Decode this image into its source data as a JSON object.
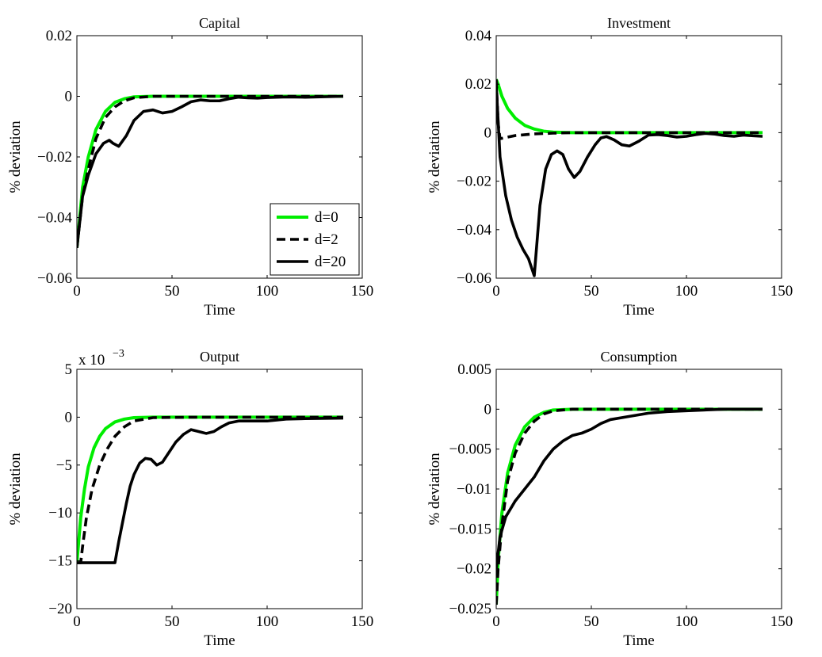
{
  "chart_data": [
    {
      "type": "line",
      "title": "Capital",
      "xlabel": "Time",
      "ylabel": "% deviation",
      "xlim": [
        0,
        150
      ],
      "ylim": [
        -0.06,
        0.02
      ],
      "xticks": [
        0,
        50,
        100,
        150
      ],
      "yticks": [
        -0.06,
        -0.04,
        -0.02,
        0,
        0.02
      ],
      "xtick_labels": [
        "0",
        "50",
        "100",
        "150"
      ],
      "ytick_labels": [
        "−0.06",
        "−0.04",
        "−0.02",
        "0",
        "0.02"
      ],
      "exponent_label": "",
      "grid": false,
      "legend": {
        "placement": "bottom-right",
        "entries": [
          "d=0",
          "d=2",
          "d=20"
        ]
      },
      "series": [
        {
          "name": "d=0",
          "color": "#00ee00",
          "dash": "solid",
          "x": [
            0,
            3,
            6,
            10,
            15,
            20,
            25,
            30,
            40,
            60,
            140
          ],
          "y": [
            -0.05,
            -0.03,
            -0.02,
            -0.011,
            -0.005,
            -0.002,
            -0.0008,
            -0.0002,
            0,
            0,
            0
          ]
        },
        {
          "name": "d=2",
          "color": "#000000",
          "dash": "dashed",
          "x": [
            0,
            3,
            6,
            10,
            15,
            20,
            25,
            30,
            40,
            60,
            140
          ],
          "y": [
            -0.05,
            -0.033,
            -0.024,
            -0.014,
            -0.007,
            -0.0035,
            -0.0015,
            -0.0005,
            0,
            0,
            0
          ]
        },
        {
          "name": "d=20",
          "color": "#000000",
          "dash": "solid",
          "x": [
            0,
            3,
            6,
            10,
            14,
            17,
            19,
            22,
            26,
            30,
            35,
            40,
            45,
            50,
            55,
            60,
            65,
            70,
            75,
            80,
            85,
            90,
            95,
            100,
            110,
            120,
            140
          ],
          "y": [
            -0.05,
            -0.033,
            -0.026,
            -0.019,
            -0.0155,
            -0.0145,
            -0.0155,
            -0.0165,
            -0.013,
            -0.008,
            -0.005,
            -0.0045,
            -0.0055,
            -0.005,
            -0.0035,
            -0.0018,
            -0.0012,
            -0.0015,
            -0.0015,
            -0.0008,
            -0.0003,
            -0.0005,
            -0.0006,
            -0.0004,
            -0.0002,
            -0.0003,
            0
          ]
        }
      ]
    },
    {
      "type": "line",
      "title": "Investment",
      "xlabel": "Time",
      "ylabel": "% deviation",
      "xlim": [
        0,
        150
      ],
      "ylim": [
        -0.06,
        0.04
      ],
      "xticks": [
        0,
        50,
        100,
        150
      ],
      "yticks": [
        -0.06,
        -0.04,
        -0.02,
        0,
        0.02,
        0.04
      ],
      "xtick_labels": [
        "0",
        "50",
        "100",
        "150"
      ],
      "ytick_labels": [
        "−0.06",
        "−0.04",
        "−0.02",
        "0",
        "0.02",
        "0.04"
      ],
      "exponent_label": "",
      "grid": false,
      "series": [
        {
          "name": "d=0",
          "color": "#00ee00",
          "dash": "solid",
          "x": [
            0,
            1,
            3,
            6,
            10,
            15,
            20,
            25,
            30,
            40,
            140
          ],
          "y": [
            0.022,
            0.02,
            0.015,
            0.01,
            0.006,
            0.003,
            0.0015,
            0.0006,
            0.0002,
            0,
            0
          ]
        },
        {
          "name": "d=2",
          "color": "#000000",
          "dash": "dashed",
          "x": [
            0,
            1,
            2,
            5,
            10,
            20,
            30,
            40,
            60,
            140
          ],
          "y": [
            0.022,
            0.004,
            -0.0025,
            -0.002,
            -0.0012,
            -0.0005,
            -0.0002,
            0,
            0,
            0
          ]
        },
        {
          "name": "d=20",
          "color": "#000000",
          "dash": "solid",
          "x": [
            0,
            2,
            5,
            8,
            11,
            14,
            17,
            20,
            23,
            26,
            29,
            32,
            35,
            38,
            41,
            44,
            48,
            52,
            55,
            58,
            62,
            66,
            70,
            75,
            80,
            85,
            90,
            95,
            100,
            105,
            110,
            115,
            120,
            125,
            130,
            135,
            140
          ],
          "y": [
            0.02,
            -0.01,
            -0.026,
            -0.036,
            -0.043,
            -0.048,
            -0.052,
            -0.059,
            -0.03,
            -0.015,
            -0.009,
            -0.0075,
            -0.009,
            -0.015,
            -0.0185,
            -0.016,
            -0.01,
            -0.005,
            -0.0022,
            -0.0016,
            -0.003,
            -0.005,
            -0.0055,
            -0.0035,
            -0.001,
            -0.0008,
            -0.0012,
            -0.0018,
            -0.0015,
            -0.0008,
            -0.0003,
            -0.0006,
            -0.0012,
            -0.0015,
            -0.001,
            -0.0013,
            -0.0015
          ]
        }
      ]
    },
    {
      "type": "line",
      "title": "Output",
      "xlabel": "Time",
      "ylabel": "% deviation",
      "xlim": [
        0,
        150
      ],
      "ylim": [
        -20,
        5
      ],
      "xticks": [
        0,
        50,
        100,
        150
      ],
      "yticks": [
        -20,
        -15,
        -10,
        -5,
        0,
        5
      ],
      "xtick_labels": [
        "0",
        "50",
        "100",
        "150"
      ],
      "ytick_labels": [
        "−20",
        "−15",
        "−10",
        "−5",
        "0",
        "5"
      ],
      "exponent_label": "x 10",
      "exponent_power": "−3",
      "grid": false,
      "series": [
        {
          "name": "d=0",
          "color": "#00ee00",
          "dash": "solid",
          "x": [
            0,
            2,
            4,
            6,
            9,
            12,
            15,
            20,
            25,
            30,
            40,
            60,
            140
          ],
          "y": [
            -15.2,
            -10.5,
            -7.5,
            -5.2,
            -3.2,
            -2.0,
            -1.2,
            -0.5,
            -0.2,
            -0.05,
            0,
            0,
            0
          ]
        },
        {
          "name": "d=2",
          "color": "#000000",
          "dash": "dashed",
          "x": [
            0,
            2,
            3,
            5,
            8,
            12,
            16,
            20,
            25,
            30,
            40,
            60,
            140
          ],
          "y": [
            -15.2,
            -15.2,
            -13.5,
            -10.5,
            -7.5,
            -5.0,
            -3.3,
            -2.0,
            -1.0,
            -0.4,
            -0.05,
            0,
            0
          ]
        },
        {
          "name": "d=20",
          "color": "#000000",
          "dash": "solid",
          "x": [
            0,
            20,
            22,
            24,
            26,
            28,
            30,
            33,
            36,
            39,
            42,
            45,
            48,
            52,
            56,
            60,
            64,
            68,
            72,
            76,
            80,
            85,
            90,
            100,
            110,
            120,
            140
          ],
          "y": [
            -15.2,
            -15.2,
            -13.0,
            -11.0,
            -9.0,
            -7.2,
            -6.0,
            -4.8,
            -4.3,
            -4.4,
            -5.0,
            -4.7,
            -3.8,
            -2.6,
            -1.8,
            -1.3,
            -1.5,
            -1.7,
            -1.5,
            -1.0,
            -0.6,
            -0.4,
            -0.4,
            -0.4,
            -0.2,
            -0.15,
            -0.1
          ]
        }
      ]
    },
    {
      "type": "line",
      "title": "Consumption",
      "xlabel": "Time",
      "ylabel": "% deviation",
      "xlim": [
        0,
        150
      ],
      "ylim": [
        -0.025,
        0.005
      ],
      "xticks": [
        0,
        50,
        100,
        150
      ],
      "yticks": [
        -0.025,
        -0.02,
        -0.015,
        -0.01,
        -0.005,
        0,
        0.005
      ],
      "xtick_labels": [
        "0",
        "50",
        "100",
        "150"
      ],
      "ytick_labels": [
        "−0.025",
        "−0.02",
        "−0.015",
        "−0.01",
        "−0.005",
        "0",
        "0.005"
      ],
      "exponent_label": "",
      "grid": false,
      "series": [
        {
          "name": "d=0",
          "color": "#00ee00",
          "dash": "solid",
          "x": [
            0,
            1,
            3,
            6,
            10,
            15,
            20,
            25,
            30,
            40,
            60,
            140
          ],
          "y": [
            -0.0245,
            -0.019,
            -0.013,
            -0.008,
            -0.0045,
            -0.0022,
            -0.001,
            -0.0004,
            -0.0001,
            0,
            0,
            0
          ]
        },
        {
          "name": "d=2",
          "color": "#000000",
          "dash": "dashed",
          "x": [
            0,
            1,
            3,
            6,
            10,
            15,
            20,
            25,
            30,
            40,
            60,
            140
          ],
          "y": [
            -0.0245,
            -0.02,
            -0.0145,
            -0.009,
            -0.0055,
            -0.003,
            -0.0015,
            -0.0006,
            -0.0002,
            0,
            0,
            0
          ]
        },
        {
          "name": "d=20",
          "color": "#000000",
          "dash": "solid",
          "x": [
            0,
            2,
            5,
            10,
            15,
            20,
            25,
            30,
            35,
            40,
            45,
            50,
            55,
            60,
            70,
            80,
            90,
            100,
            120,
            140
          ],
          "y": [
            -0.02,
            -0.016,
            -0.0135,
            -0.0115,
            -0.01,
            -0.0085,
            -0.0065,
            -0.005,
            -0.004,
            -0.0033,
            -0.003,
            -0.0025,
            -0.0018,
            -0.0013,
            -0.0009,
            -0.0005,
            -0.0003,
            -0.0002,
            0,
            0
          ]
        }
      ]
    }
  ]
}
